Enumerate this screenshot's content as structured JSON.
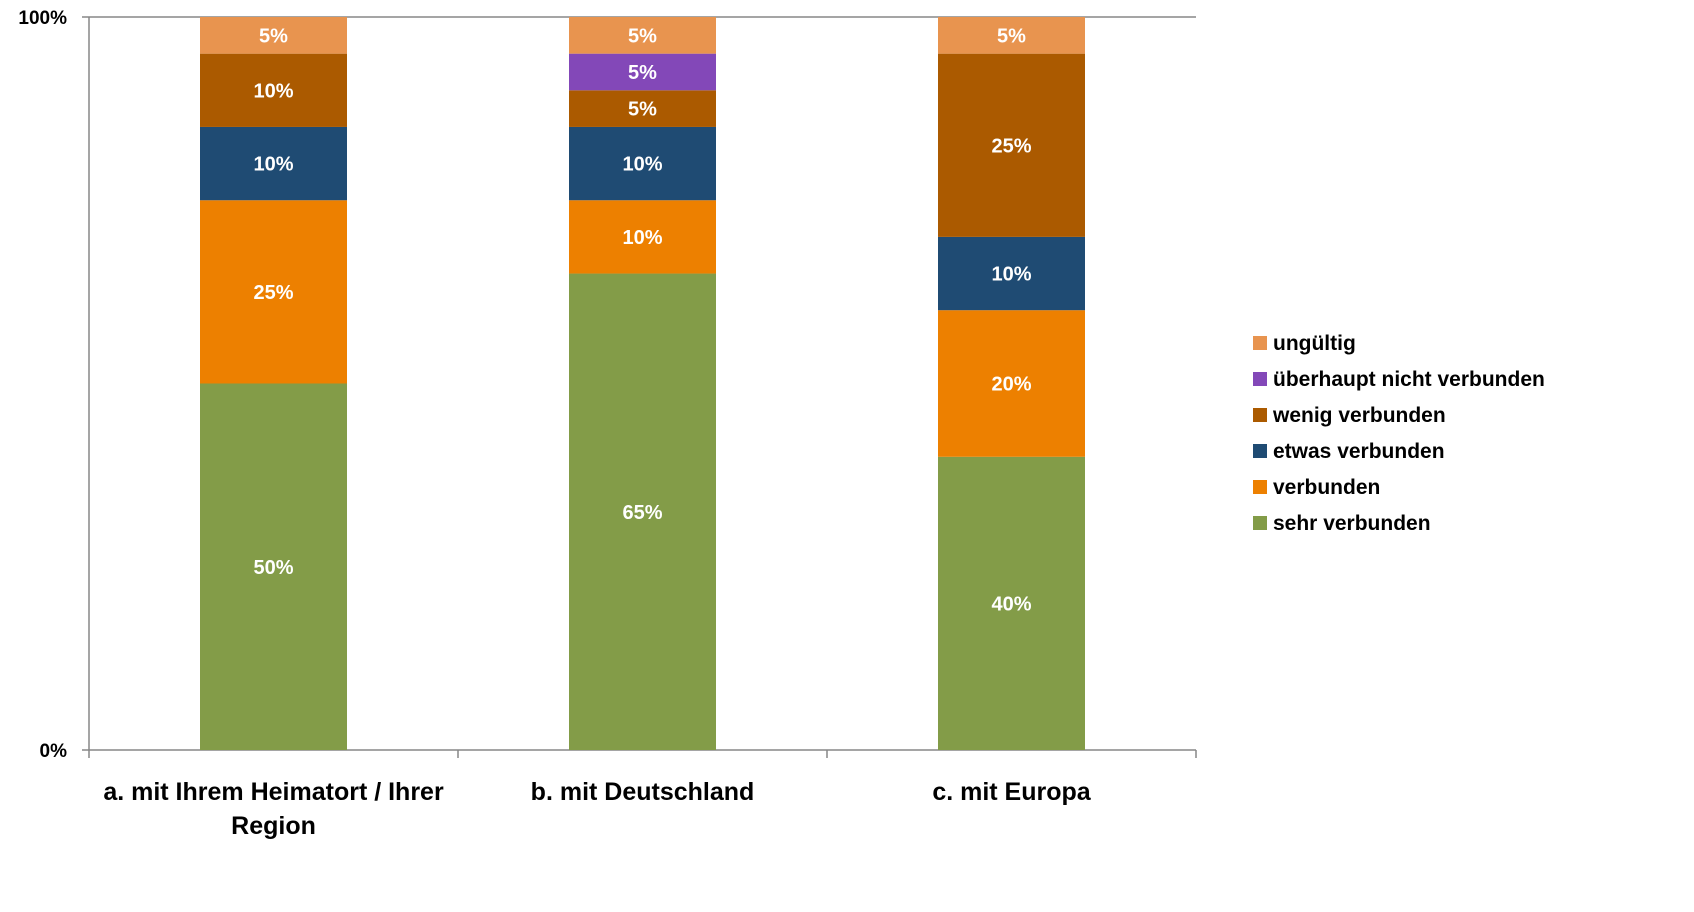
{
  "chart_data": {
    "type": "bar",
    "stacked": true,
    "title": "",
    "xlabel": "",
    "ylabel": "",
    "ylim": [
      0,
      100
    ],
    "y_ticks": [
      "0%",
      "100%"
    ],
    "grid": false,
    "legend_position": "right",
    "categories": [
      [
        "a. mit Ihrem Heimatort / Ihrer",
        "Region"
      ],
      [
        "b. mit Deutschland"
      ],
      [
        "c. mit Europa"
      ]
    ],
    "series": [
      {
        "name": "sehr verbunden",
        "color": "#839c48",
        "values": [
          50,
          65,
          40
        ],
        "labels": [
          "50%",
          "65%",
          "40%"
        ]
      },
      {
        "name": "verbunden",
        "color": "#ed8000",
        "values": [
          25,
          10,
          20
        ],
        "labels": [
          "25%",
          "10%",
          "20%"
        ]
      },
      {
        "name": "etwas verbunden",
        "color": "#1f4b73",
        "values": [
          10,
          10,
          10
        ],
        "labels": [
          "10%",
          "10%",
          "10%"
        ]
      },
      {
        "name": "wenig verbunden",
        "color": "#ab5a00",
        "values": [
          10,
          5,
          25
        ],
        "labels": [
          "10%",
          "5%",
          "25%"
        ]
      },
      {
        "name": "überhaupt nicht verbunden",
        "color": "#8348b8",
        "values": [
          0,
          5,
          0
        ],
        "labels": [
          "",
          "5%",
          ""
        ]
      },
      {
        "name": "ungültig",
        "color": "#e8944f",
        "values": [
          5,
          5,
          5
        ],
        "labels": [
          "5%",
          "5%",
          "5%"
        ]
      }
    ]
  }
}
